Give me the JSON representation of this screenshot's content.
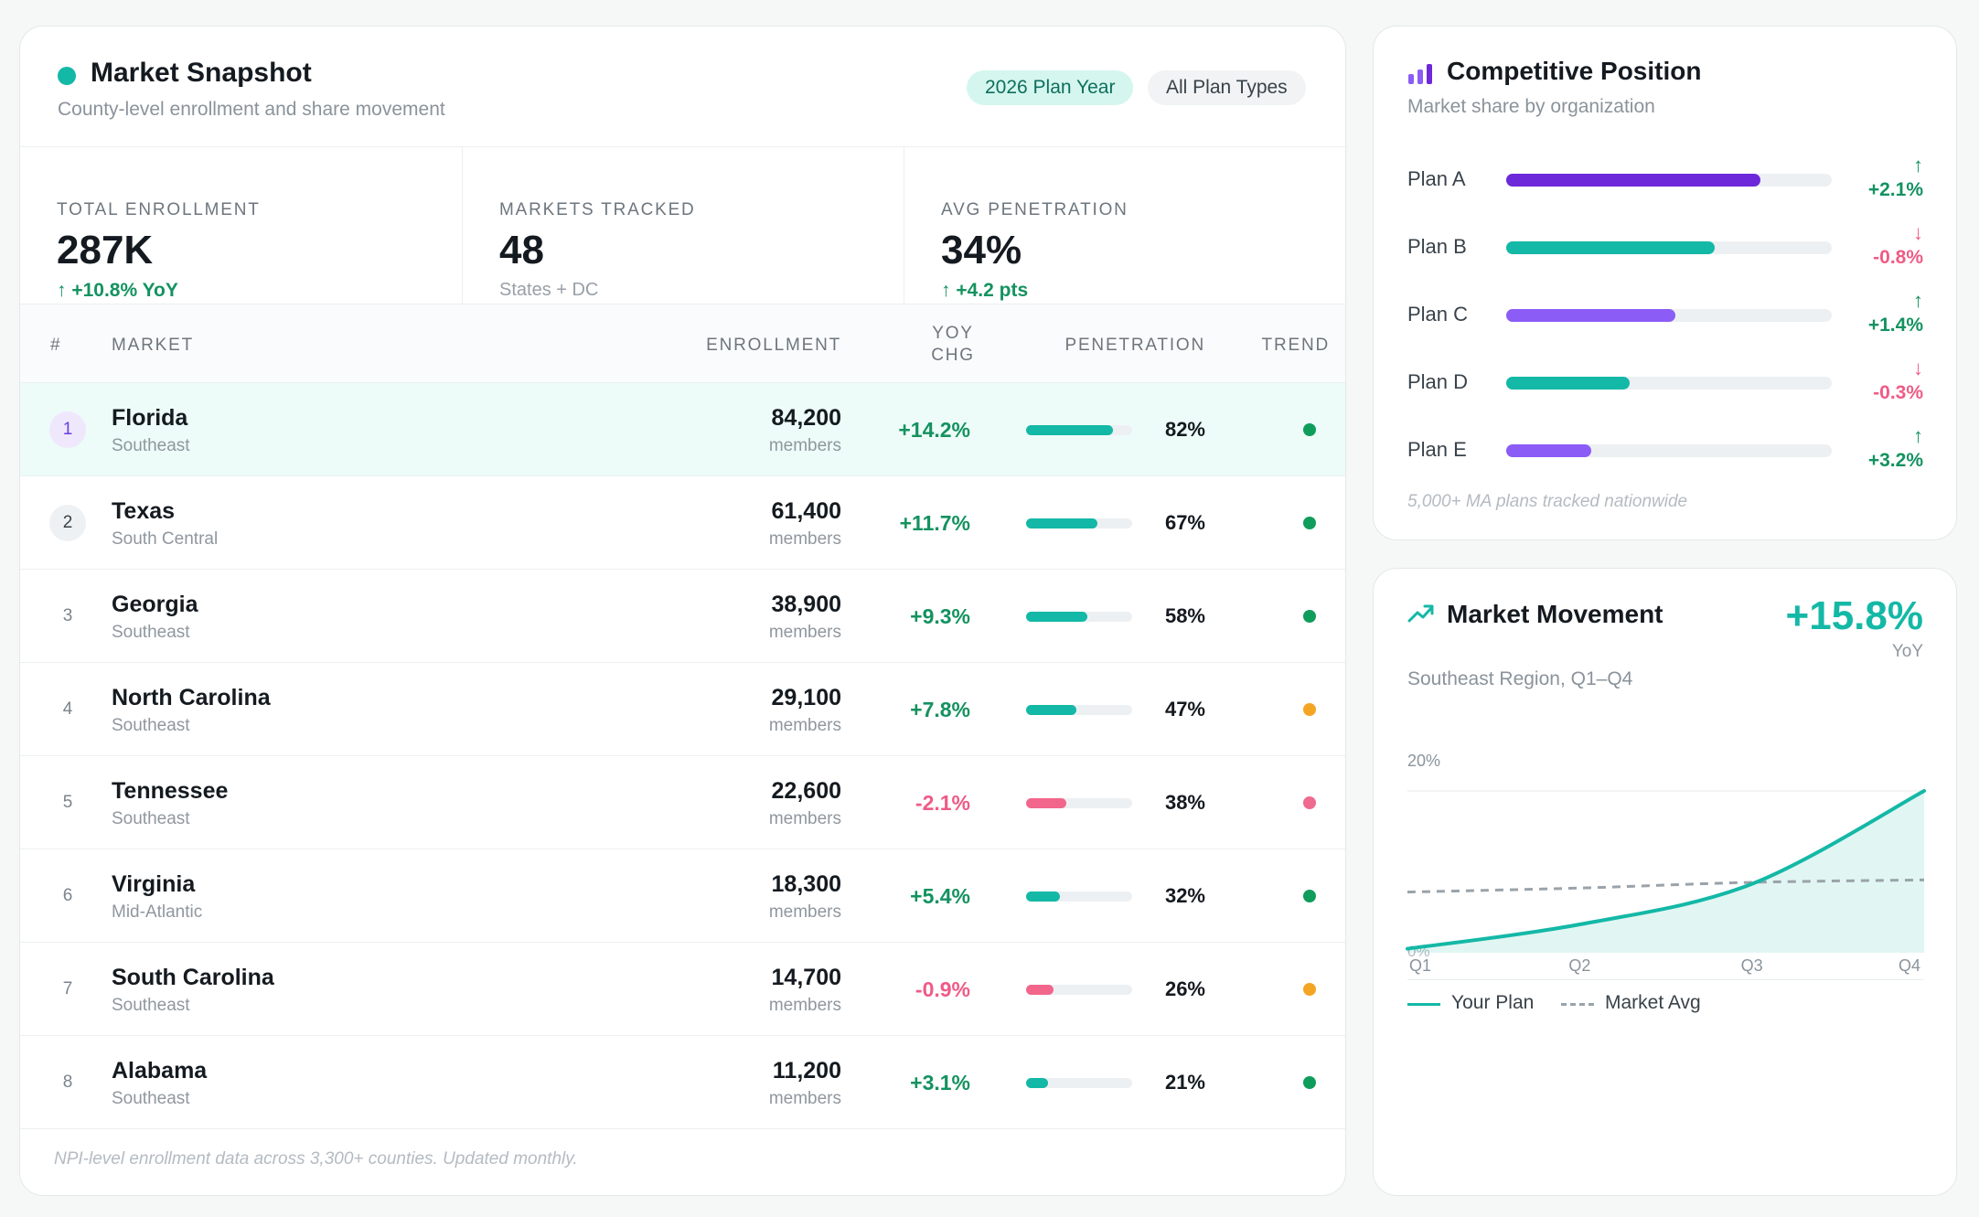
{
  "snapshot": {
    "title": "Market Snapshot",
    "subtitle": "County-level enrollment and share movement",
    "pill_year": "2026 Plan Year",
    "pill_types": "All Plan Types",
    "kpis": [
      {
        "label": "TOTAL ENROLLMENT",
        "value": "287K",
        "delta": "+10.8% YoY",
        "note": ""
      },
      {
        "label": "MARKETS TRACKED",
        "value": "48",
        "delta": "",
        "note": "States + DC"
      },
      {
        "label": "AVG PENETRATION",
        "value": "34%",
        "delta": "+4.2 pts",
        "note": ""
      }
    ],
    "columns": {
      "rank": "#",
      "market": "MARKET",
      "enrollment": "ENROLLMENT",
      "yoy_1": "YOY",
      "yoy_2": "CHG",
      "penetration": "PENETRATION",
      "trend": "TREND"
    },
    "rows": [
      {
        "rank": "1",
        "name": "Florida",
        "region": "Southeast",
        "enrollment": "84,200",
        "unit": "members",
        "yoy": "+14.2%",
        "yoy_sign": "pos",
        "penetration": "82%",
        "penetration_value": 0.82,
        "trend_color": "#0f9d5c"
      },
      {
        "rank": "2",
        "name": "Texas",
        "region": "South Central",
        "enrollment": "61,400",
        "unit": "members",
        "yoy": "+11.7%",
        "yoy_sign": "pos",
        "penetration": "67%",
        "penetration_value": 0.67,
        "trend_color": "#0f9d5c"
      },
      {
        "rank": "3",
        "name": "Georgia",
        "region": "Southeast",
        "enrollment": "38,900",
        "unit": "members",
        "yoy": "+9.3%",
        "yoy_sign": "pos",
        "penetration": "58%",
        "penetration_value": 0.58,
        "trend_color": "#0f9d5c"
      },
      {
        "rank": "4",
        "name": "North Carolina",
        "region": "Southeast",
        "enrollment": "29,100",
        "unit": "members",
        "yoy": "+7.8%",
        "yoy_sign": "pos",
        "penetration": "47%",
        "penetration_value": 0.47,
        "trend_color": "#f5a524"
      },
      {
        "rank": "5",
        "name": "Tennessee",
        "region": "Southeast",
        "enrollment": "22,600",
        "unit": "members",
        "yoy": "-2.1%",
        "yoy_sign": "neg",
        "penetration": "38%",
        "penetration_value": 0.38,
        "trend_color": "#ef6a8f"
      },
      {
        "rank": "6",
        "name": "Virginia",
        "region": "Mid-Atlantic",
        "enrollment": "18,300",
        "unit": "members",
        "yoy": "+5.4%",
        "yoy_sign": "pos",
        "penetration": "32%",
        "penetration_value": 0.32,
        "trend_color": "#0f9d5c"
      },
      {
        "rank": "7",
        "name": "South Carolina",
        "region": "Southeast",
        "enrollment": "14,700",
        "unit": "members",
        "yoy": "-0.9%",
        "yoy_sign": "neg",
        "penetration": "26%",
        "penetration_value": 0.26,
        "trend_color": "#f5a524"
      },
      {
        "rank": "8",
        "name": "Alabama",
        "region": "Southeast",
        "enrollment": "11,200",
        "unit": "members",
        "yoy": "+3.1%",
        "yoy_sign": "pos",
        "penetration": "21%",
        "penetration_value": 0.21,
        "trend_color": "#0f9d5c"
      }
    ],
    "footnote": "NPI-level enrollment data across 3,300+ counties. Updated monthly."
  },
  "competitive": {
    "title": "Competitive Position",
    "subtitle": "Market share by organization",
    "plans": [
      {
        "label": "Plan A",
        "share": 0.78,
        "color": "#6d28d9",
        "delta": "+2.1%",
        "direction": "up"
      },
      {
        "label": "Plan B",
        "share": 0.64,
        "color": "#14b8a6",
        "delta": "-0.8%",
        "direction": "down"
      },
      {
        "label": "Plan C",
        "share": 0.52,
        "color": "#8b5cf6",
        "delta": "+1.4%",
        "direction": "up"
      },
      {
        "label": "Plan D",
        "share": 0.38,
        "color": "#14b8a6",
        "delta": "-0.3%",
        "direction": "down"
      },
      {
        "label": "Plan E",
        "share": 0.26,
        "color": "#8b5cf6",
        "delta": "+3.2%",
        "direction": "up"
      }
    ],
    "footnote": "5,000+ MA plans tracked nationwide",
    "icon": "bar-chart-icon"
  },
  "movement": {
    "title": "Market Movement",
    "big_delta": "+15.8%",
    "big_delta_unit": "YoY",
    "subtitle": "Southeast Region, Q1–Q4",
    "icon": "trending-up-icon",
    "legend": {
      "your_plan": "Your Plan",
      "market_avg": "Market Avg"
    }
  },
  "chart_data": {
    "type": "area",
    "x": [
      "Q1",
      "Q2",
      "Q3",
      "Q4"
    ],
    "series": [
      {
        "name": "Your Plan",
        "values": [
          0.5,
          3.5,
          8.5,
          20
        ]
      },
      {
        "name": "Market Avg",
        "values": [
          7.5,
          8.0,
          8.7,
          9.0
        ]
      }
    ],
    "ylim": [
      0,
      20
    ],
    "y_ticks": [
      "0%",
      "20%"
    ],
    "grid": true,
    "legend": "bottom-left",
    "colors": {
      "Your Plan": "#14b8a6",
      "Market Avg": "#9aa3aa"
    }
  }
}
